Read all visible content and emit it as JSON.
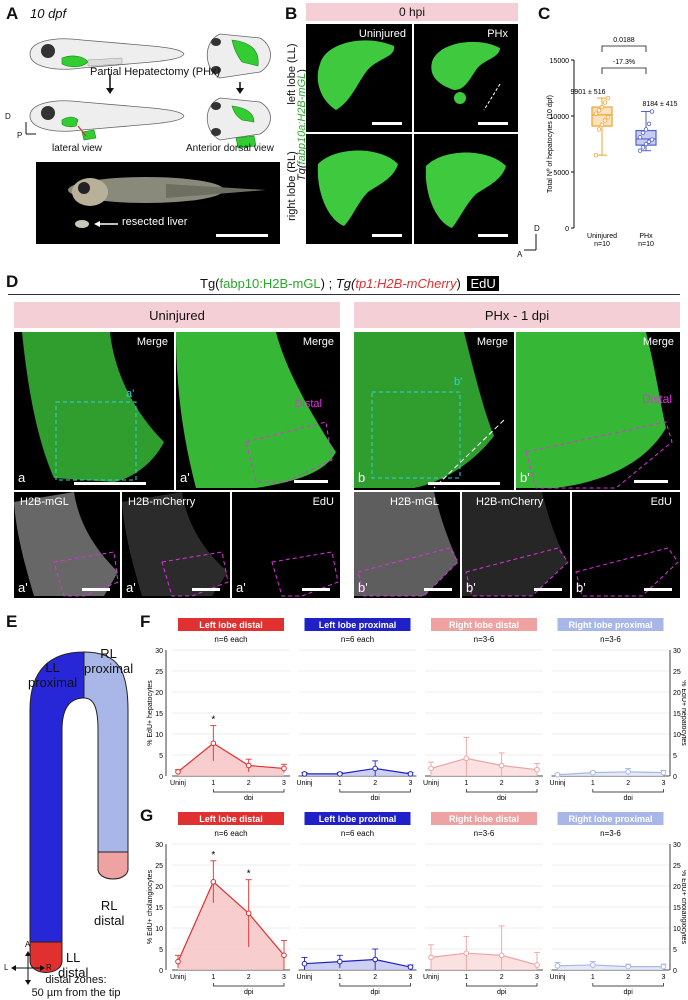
{
  "panels": {
    "A": {
      "letter": "A",
      "stage": "10 dpf",
      "procedure": "Partial Hepatectomy (PHx)",
      "lateral_view": "lateral view",
      "dorsal_view": "Anterior dorsal view",
      "resected_label": "resected liver",
      "axis_d": "D",
      "axis_p": "P"
    },
    "B": {
      "letter": "B",
      "timepoint": "0 hpi",
      "col_uninjured": "Uninjured",
      "col_phx": "PHx",
      "row_left": "left lobe (LL)",
      "row_right": "right lobe (RL)",
      "transgene_prefix": "Tg(",
      "transgene_name": "fabp10a:H2B-mGL",
      "transgene_suffix": ")",
      "axis_d": "D",
      "axis_a": "A"
    },
    "C": {
      "letter": "C",
      "ylabel": "Total Nº of hepatocytes (10 dpf)",
      "pvalue": "0.0188",
      "percent_change": "-17.3%",
      "uninjured_mean": "9901 ± 516",
      "phx_mean": "8184 ± 415"
    },
    "D": {
      "letter": "D",
      "legend_tg1": "Tg(",
      "legend_tg1_name": "fabp10:H2B-mGL",
      "legend_sep": ") ; ",
      "legend_tg2": "Tg(",
      "legend_tg2_name": "tp1:H2B-mCherry",
      "legend_close": ")",
      "legend_edu": "EdU",
      "header_uninjured": "Uninjured",
      "header_phx": "PHx - 1 dpi",
      "merge": "Merge",
      "distal": "Distal",
      "ch_mgl": "H2B-mGL",
      "ch_mcherry": "H2B-mCherry",
      "ch_edu": "EdU",
      "sub_a": "a",
      "sub_a_prime": "a'",
      "sub_b": "b",
      "sub_b_prime": "b'"
    },
    "E": {
      "letter": "E",
      "ll_proximal_1": "LL",
      "ll_proximal_2": "proximal",
      "rl_proximal_1": "RL",
      "rl_proximal_2": "proximal",
      "rl_distal_1": "RL",
      "rl_distal_2": "distal",
      "ll_distal_1": "LL",
      "ll_distal_2": "distal",
      "axis_a": "A",
      "axis_p": "P",
      "axis_l": "L",
      "axis_r": "R",
      "note_1": "distal zones:",
      "note_2": "50 µm from the tip"
    },
    "F": {
      "letter": "F",
      "ylabel_left": "% EdU+ hepatocytes",
      "ylabel_right": "% EdU+ hepatocytes"
    },
    "G": {
      "letter": "G",
      "ylabel_left": "% EdU+ cholangiocytes",
      "ylabel_right": "% EdU+ cholangiocytes"
    }
  },
  "colors": {
    "green": "#3ec93e",
    "red": "#e0302f",
    "blue": "#2020c8",
    "light_red": "#eea2a2",
    "light_blue": "#a8b6e8",
    "orange": "#f3a12f",
    "purple": "#5060d0",
    "pink_bar": "#f5cfd6",
    "magenta": "#e030e0",
    "cyan": "#33cfe0"
  },
  "chart_data": [
    {
      "type": "box",
      "panel": "C",
      "categories": [
        "Uninjured\nn=10",
        "PHx\nn=10"
      ],
      "category_names": [
        "Uninjured",
        "PHx"
      ],
      "category_n": [
        "n=10",
        "n=10"
      ],
      "ylim": [
        0,
        15000
      ],
      "yticks": [
        "0",
        "5000",
        "10000",
        "15000"
      ],
      "ylabel": "Total Nº of hepatocytes (10 dpf)",
      "boxes": [
        {
          "min": 6500,
          "q1": 9100,
          "median": 10100,
          "q3": 10800,
          "max": 11600,
          "points": [
            6500,
            8800,
            9200,
            9600,
            9900,
            10200,
            10500,
            10800,
            11200,
            11600
          ]
        },
        {
          "min": 6900,
          "q1": 7400,
          "median": 7950,
          "q3": 8700,
          "max": 10400,
          "points": [
            6900,
            7200,
            7500,
            7700,
            7900,
            8100,
            8500,
            8800,
            9300,
            10400
          ]
        }
      ]
    },
    {
      "type": "line",
      "panel": "F",
      "x": [
        "Uninj",
        "1",
        "2",
        "3"
      ],
      "xlabel": "dpi",
      "ylim": [
        0,
        30
      ],
      "yticks": [
        "0",
        "5",
        "10",
        "15",
        "20",
        "25",
        "30"
      ],
      "series": [
        {
          "name": "Left lobe distal",
          "n": "n=6 each",
          "values": [
            1,
            7.8,
            2.5,
            1.8
          ],
          "err": [
            0.5,
            4.2,
            1.5,
            1.0
          ],
          "sig": [
            "",
            "*",
            "",
            ""
          ],
          "color": "#e0302f",
          "fill": "#f6c4c4"
        },
        {
          "name": "Left lobe proximal",
          "n": "n=6 each",
          "values": [
            0.5,
            0.5,
            1.8,
            0.5
          ],
          "err": [
            0.3,
            0.3,
            1.8,
            0.3
          ],
          "sig": [
            "",
            "",
            "",
            ""
          ],
          "color": "#2020c8",
          "fill": "#c4c8f0"
        },
        {
          "name": "Right lobe distal",
          "n": "n=3-6",
          "values": [
            1.8,
            4.2,
            2.5,
            1.5
          ],
          "err": [
            1.5,
            5.0,
            3.0,
            1.5
          ],
          "sig": [
            "",
            "",
            "",
            ""
          ],
          "color": "#eea2a2",
          "fill": "#fadcdc"
        },
        {
          "name": "Right lobe proximal",
          "n": "n=3-6",
          "values": [
            0.3,
            0.8,
            1.0,
            0.8
          ],
          "err": [
            0.2,
            0.3,
            0.8,
            0.5
          ],
          "sig": [
            "",
            "",
            "",
            ""
          ],
          "color": "#a8b6e8",
          "fill": "#e2e6f6"
        }
      ]
    },
    {
      "type": "line",
      "panel": "G",
      "x": [
        "Uninj",
        "1",
        "2",
        "3"
      ],
      "xlabel": "dpi",
      "ylim": [
        0,
        30
      ],
      "yticks": [
        "0",
        "5",
        "10",
        "15",
        "20",
        "25",
        "30"
      ],
      "series": [
        {
          "name": "Left lobe distal",
          "n": "n=6 each",
          "values": [
            2,
            21,
            13.5,
            3.5
          ],
          "err": [
            1.5,
            5.0,
            8.0,
            3.5
          ],
          "sig": [
            "",
            "*",
            "*",
            ""
          ],
          "color": "#e0302f",
          "fill": "#f6c4c4"
        },
        {
          "name": "Left lobe proximal",
          "n": "n=6 each",
          "values": [
            1.5,
            2.0,
            2.5,
            0.7
          ],
          "err": [
            1.5,
            1.5,
            2.5,
            0.5
          ],
          "sig": [
            "",
            "",
            "",
            ""
          ],
          "color": "#2020c8",
          "fill": "#c4c8f0"
        },
        {
          "name": "Right lobe distal",
          "n": "n=3-6",
          "values": [
            3,
            4,
            3.5,
            1.2
          ],
          "err": [
            3.0,
            4.0,
            7.0,
            3.0
          ],
          "sig": [
            "",
            "",
            "",
            ""
          ],
          "color": "#eea2a2",
          "fill": "#fadcdc"
        },
        {
          "name": "Right lobe proximal",
          "n": "n=3-6",
          "values": [
            1.0,
            1.2,
            0.8,
            0.8
          ],
          "err": [
            0.8,
            0.8,
            0.6,
            0.6
          ],
          "sig": [
            "",
            "",
            "",
            ""
          ],
          "color": "#a8b6e8",
          "fill": "#e2e6f6"
        }
      ]
    }
  ]
}
